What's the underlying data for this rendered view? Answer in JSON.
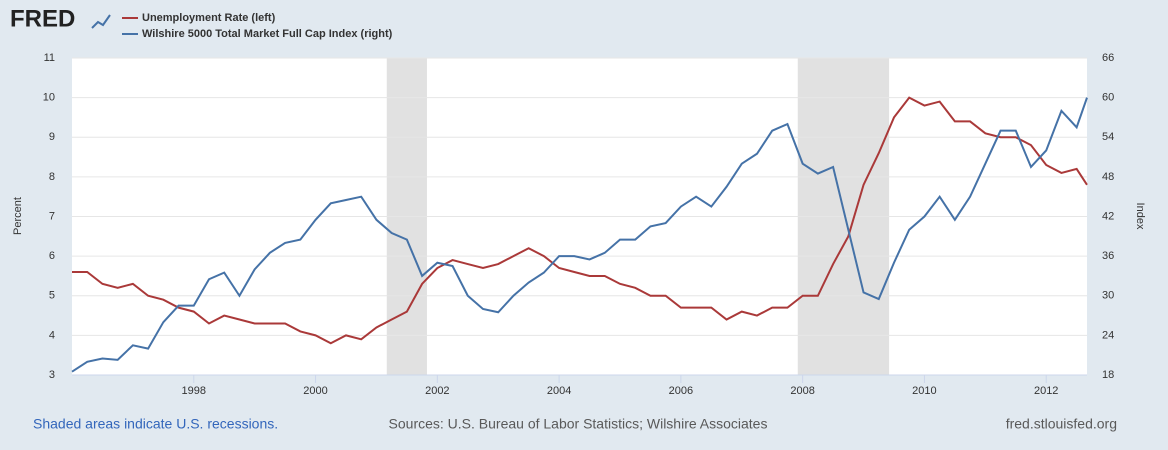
{
  "logo": "FRED",
  "chart_data": {
    "type": "line",
    "y_label": "Percent",
    "y2_label": "Index",
    "x": [
      1996,
      1996.25,
      1996.5,
      1996.75,
      1997,
      1997.25,
      1997.5,
      1997.75,
      1998,
      1998.25,
      1998.5,
      1998.75,
      1999,
      1999.25,
      1999.5,
      1999.75,
      2000,
      2000.25,
      2000.5,
      2000.75,
      2001,
      2001.25,
      2001.5,
      2001.75,
      2002,
      2002.25,
      2002.5,
      2002.75,
      2003,
      2003.25,
      2003.5,
      2003.75,
      2004,
      2004.25,
      2004.5,
      2004.75,
      2005,
      2005.25,
      2005.5,
      2005.75,
      2006,
      2006.25,
      2006.5,
      2006.75,
      2007,
      2007.25,
      2007.5,
      2007.75,
      2008,
      2008.25,
      2008.5,
      2008.75,
      2009,
      2009.25,
      2009.5,
      2009.75,
      2010,
      2010.25,
      2010.5,
      2010.75,
      2011,
      2011.25,
      2011.5,
      2011.75,
      2012,
      2012.25,
      2012.5,
      2012.67
    ],
    "xlim": [
      1996,
      2012.67
    ],
    "xticks": [
      1998,
      2000,
      2002,
      2004,
      2006,
      2008,
      2010,
      2012
    ],
    "ylim": [
      3,
      11
    ],
    "yticks": [
      3,
      4,
      5,
      6,
      7,
      8,
      9,
      10,
      11
    ],
    "y2lim": [
      18,
      66
    ],
    "y2ticks": [
      18,
      24,
      30,
      36,
      42,
      48,
      54,
      60,
      66
    ],
    "grid": true,
    "recessions": [
      [
        2001.17,
        2001.83
      ],
      [
        2007.92,
        2009.42
      ]
    ],
    "series": [
      {
        "name": "Unemployment Rate (left)",
        "color": "#aa3939",
        "axis": "y",
        "values": [
          5.6,
          5.6,
          5.3,
          5.2,
          5.3,
          5.0,
          4.9,
          4.7,
          4.6,
          4.3,
          4.5,
          4.4,
          4.3,
          4.3,
          4.3,
          4.1,
          4.0,
          3.8,
          4.0,
          3.9,
          4.2,
          4.4,
          4.6,
          5.3,
          5.7,
          5.9,
          5.8,
          5.7,
          5.8,
          6.0,
          6.2,
          6.0,
          5.7,
          5.6,
          5.5,
          5.5,
          5.3,
          5.2,
          5.0,
          5.0,
          4.7,
          4.7,
          4.7,
          4.4,
          4.6,
          4.5,
          4.7,
          4.7,
          5.0,
          5.0,
          5.8,
          6.5,
          7.8,
          8.6,
          9.5,
          10.0,
          9.8,
          9.9,
          9.4,
          9.4,
          9.1,
          9.0,
          9.0,
          8.8,
          8.3,
          8.1,
          8.2,
          7.8
        ]
      },
      {
        "name": "Wilshire 5000 Total Market Full Cap Index (right)",
        "color": "#4572a7",
        "axis": "y2",
        "values": [
          18.5,
          20.0,
          20.5,
          20.3,
          22.5,
          22.0,
          26,
          28.5,
          28.5,
          32.5,
          33.5,
          30,
          34,
          36.5,
          38,
          38.5,
          41.5,
          44,
          44.5,
          45,
          41.5,
          39.5,
          38.5,
          33,
          35,
          34.5,
          30,
          28,
          27.5,
          30,
          32,
          33.5,
          36,
          36,
          35.5,
          36.5,
          38.5,
          38.5,
          40.5,
          41,
          43.5,
          45,
          43.5,
          46.5,
          50,
          51.5,
          55,
          56,
          50,
          48.5,
          49.5,
          40,
          30.5,
          29.5,
          35,
          40,
          42,
          45,
          41.5,
          45,
          50,
          55,
          55,
          49.5,
          52,
          58,
          55.5,
          60
        ]
      }
    ]
  },
  "footer": {
    "left": "Shaded areas indicate U.S. recessions.",
    "center": "Sources: U.S. Bureau of Labor Statistics; Wilshire Associates",
    "right": "fred.stlouisfed.org"
  }
}
